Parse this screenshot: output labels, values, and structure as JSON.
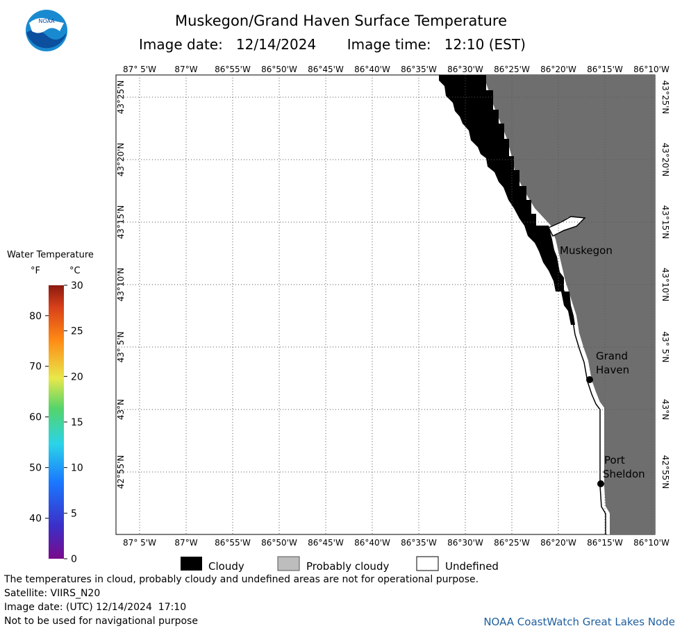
{
  "header": {
    "title": "Muskegon/Grand Haven Surface Temperature",
    "image_date_label": "Image date:",
    "image_date": "12/14/2024",
    "image_time_label": "Image time:",
    "image_time": "12:10 (EST)",
    "logo_text": "NOAA"
  },
  "map": {
    "lon_labels": [
      "87° 5'W",
      "87°W",
      "86°55'W",
      "86°50'W",
      "86°45'W",
      "86°40'W",
      "86°35'W",
      "86°30'W",
      "86°25'W",
      "86°20'W",
      "86°15'W",
      "86°10'W"
    ],
    "lat_labels": [
      "43°25'N",
      "43°20'N",
      "43°15'N",
      "43°10'N",
      "43° 5'N",
      "43°N",
      "42°55'N"
    ],
    "places": [
      {
        "name_line1": "Muskegon",
        "name_line2": ""
      },
      {
        "name_line1": "Grand",
        "name_line2": "Haven"
      },
      {
        "name_line1": "Port",
        "name_line2": "Sheldon"
      }
    ],
    "colors": {
      "land": "#6e6e6e",
      "cloud": "#000000",
      "water": "#ffffff"
    }
  },
  "color_scale": {
    "title": "Water Temperature",
    "unit_f": "°F",
    "unit_c": "°C",
    "f_ticks": [
      "80",
      "70",
      "60",
      "50",
      "40"
    ],
    "c_ticks": [
      "30",
      "25",
      "20",
      "15",
      "10",
      "5",
      "0"
    ]
  },
  "category_legend": {
    "cloudy": "Cloudy",
    "probably_cloudy": "Probably cloudy",
    "undefined": "Undefined"
  },
  "footer": {
    "note": "The temperatures in cloud, probably cloudy and undefined areas are not for operational purpose.",
    "satellite": "Satellite: VIIRS_N20",
    "utc_date": "Image date: (UTC) 12/14/2024  17:10",
    "nav_warning": "Not to be used for navigational purpose",
    "credit": "NOAA CoastWatch Great Lakes Node"
  }
}
